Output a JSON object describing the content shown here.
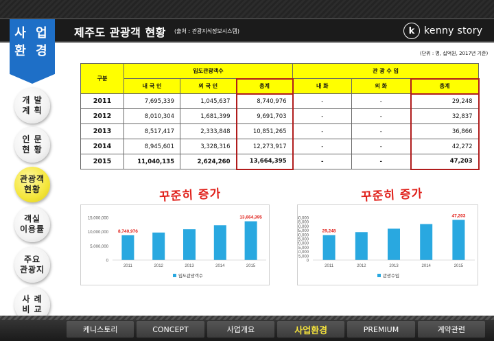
{
  "header": {
    "title": "제주도 관광객 현황",
    "source": "(출처 : 관광지식정보시스템)",
    "logo_mark": "k",
    "logo_text": "kenny story"
  },
  "section_tag": {
    "line1": "사 업",
    "line2": "환 경"
  },
  "side_nav": [
    {
      "label": "개 발\n계 획",
      "active": false
    },
    {
      "label": "인 문\n현 황",
      "active": false
    },
    {
      "label": "관광객\n현황",
      "active": true
    },
    {
      "label": "객실\n이용률",
      "active": false
    },
    {
      "label": "주요\n관광지",
      "active": false
    },
    {
      "label": "사 례\n비 교",
      "active": false
    }
  ],
  "unit_note": "(단위 : 명, 십억원, 2017년 기준)",
  "table": {
    "header_group": "구분",
    "group1": "입도관광객수",
    "group2": "관 광 수 입",
    "sub1": [
      "내 국 인",
      "외 국 인",
      "총계"
    ],
    "sub2": [
      "내      화",
      "외      화",
      "총계"
    ],
    "rows": [
      {
        "year": "2011",
        "domestic": "7,695,339",
        "foreign": "1,045,637",
        "total": "8,740,976",
        "rev_d": "-",
        "rev_f": "-",
        "rev_total": "29,248"
      },
      {
        "year": "2012",
        "domestic": "8,010,304",
        "foreign": "1,681,399",
        "total": "9,691,703",
        "rev_d": "-",
        "rev_f": "-",
        "rev_total": "32,837"
      },
      {
        "year": "2013",
        "domestic": "8,517,417",
        "foreign": "2,333,848",
        "total": "10,851,265",
        "rev_d": "-",
        "rev_f": "-",
        "rev_total": "36,866"
      },
      {
        "year": "2014",
        "domestic": "8,945,601",
        "foreign": "3,328,316",
        "total": "12,273,917",
        "rev_d": "-",
        "rev_f": "-",
        "rev_total": "42,272"
      },
      {
        "year": "2015",
        "domestic": "11,040,135",
        "foreign": "2,624,260",
        "total": "13,664,395",
        "rev_d": "-",
        "rev_f": "-",
        "rev_total": "47,203"
      }
    ]
  },
  "annotations": {
    "left": "꾸준히 증가",
    "right": "꾸준히 증가"
  },
  "colors": {
    "bar": "#29a8e0",
    "accent_red": "#e0201a",
    "highlight_yellow": "#ffff00",
    "tag_blue": "#1e6fc7"
  },
  "chart_data": [
    {
      "type": "bar",
      "categories": [
        "2011",
        "2012",
        "2013",
        "2014",
        "2015"
      ],
      "series": [
        {
          "name": "입도관광객수",
          "values": [
            8740976,
            9691703,
            10851265,
            12273917,
            13664395
          ]
        }
      ],
      "data_labels": [
        "8,740,976",
        "",
        "",
        "",
        "13,664,395"
      ],
      "yticks": [
        "0",
        "5,000,000",
        "10,000,000",
        "15,000,000"
      ],
      "ylim": [
        0,
        15000000
      ],
      "legend": "bottom"
    },
    {
      "type": "bar",
      "categories": [
        "2011",
        "2012",
        "2013",
        "2014",
        "2015"
      ],
      "series": [
        {
          "name": "관광수입",
          "values": [
            29248,
            32837,
            36866,
            42272,
            47203
          ]
        }
      ],
      "data_labels": [
        "29,248",
        "",
        "",
        "",
        "47,203"
      ],
      "yticks": [
        "0",
        "5,000",
        "10,000",
        "15,000",
        "20,000",
        "25,000",
        "30,000",
        "35,000",
        "40,000",
        "45,000",
        "50,000"
      ],
      "ylim": [
        0,
        50000
      ],
      "legend": "bottom"
    }
  ],
  "bottom_nav": [
    {
      "label": "케니스토리",
      "active": false
    },
    {
      "label": "CONCEPT",
      "active": false
    },
    {
      "label": "사업개요",
      "active": false
    },
    {
      "label": "사업환경",
      "active": true
    },
    {
      "label": "PREMIUM",
      "active": false
    },
    {
      "label": "계약관련",
      "active": false
    }
  ]
}
